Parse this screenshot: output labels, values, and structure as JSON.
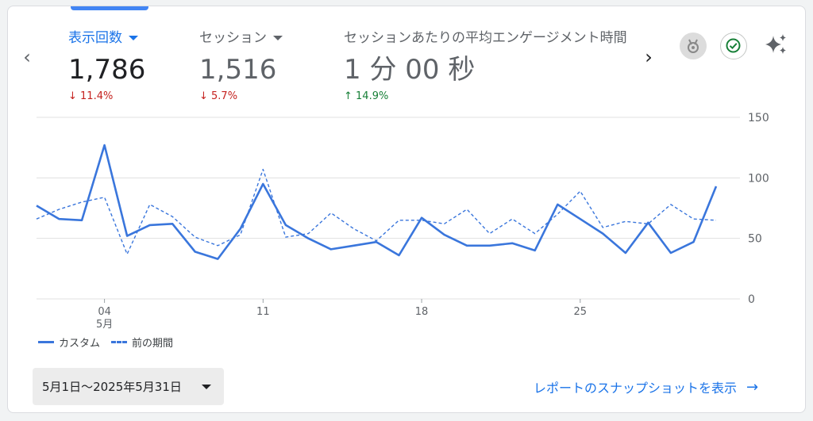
{
  "metrics": [
    {
      "label": "表示回数",
      "value": "1,786",
      "delta": "↓ 11.4%",
      "direction": "down"
    },
    {
      "label": "セッション",
      "value": "1,516",
      "delta": "↓ 5.7%",
      "direction": "down"
    },
    {
      "label": "セッションあたりの平均エンゲージメント時間",
      "value": "1 分 00 秒",
      "delta": "↑ 14.9%",
      "direction": "up"
    }
  ],
  "icons": {
    "medal": "medal-icon",
    "check": "check-circle-icon",
    "sparkle": "sparkle-icon"
  },
  "chart_data": {
    "type": "line",
    "x": [
      1,
      2,
      3,
      4,
      5,
      6,
      7,
      8,
      9,
      10,
      11,
      12,
      13,
      14,
      15,
      16,
      17,
      18,
      19,
      20,
      21,
      22,
      23,
      24,
      25,
      26,
      27,
      28,
      29,
      30,
      31
    ],
    "x_tick_labels": [
      "04",
      "11",
      "18",
      "25"
    ],
    "x_tick_days": [
      4,
      11,
      18,
      25
    ],
    "x_sub_label": "5月",
    "ylim": [
      0,
      150
    ],
    "y_ticks": [
      0,
      50,
      100,
      150
    ],
    "grid": true,
    "legend_position": "bottom-left",
    "series": [
      {
        "name": "カスタム",
        "style": "solid",
        "color": "#3a76dc",
        "values": [
          77,
          66,
          65,
          127,
          52,
          61,
          62,
          39,
          33,
          58,
          95,
          61,
          50,
          41,
          44,
          47,
          36,
          67,
          53,
          44,
          44,
          46,
          40,
          78,
          66,
          54,
          38,
          63,
          38,
          47,
          93
        ]
      },
      {
        "name": "前の期間",
        "style": "dashed",
        "color": "#3a76dc",
        "values": [
          66,
          74,
          80,
          84,
          37,
          78,
          68,
          51,
          44,
          53,
          107,
          51,
          54,
          71,
          58,
          48,
          65,
          65,
          62,
          74,
          54,
          66,
          54,
          70,
          89,
          59,
          64,
          62,
          78,
          66,
          65
        ]
      }
    ]
  },
  "date_range": {
    "label": "5月1日〜2025年5月31日"
  },
  "report_link": {
    "label": "レポートのスナップショットを表示",
    "arrow": "→"
  }
}
